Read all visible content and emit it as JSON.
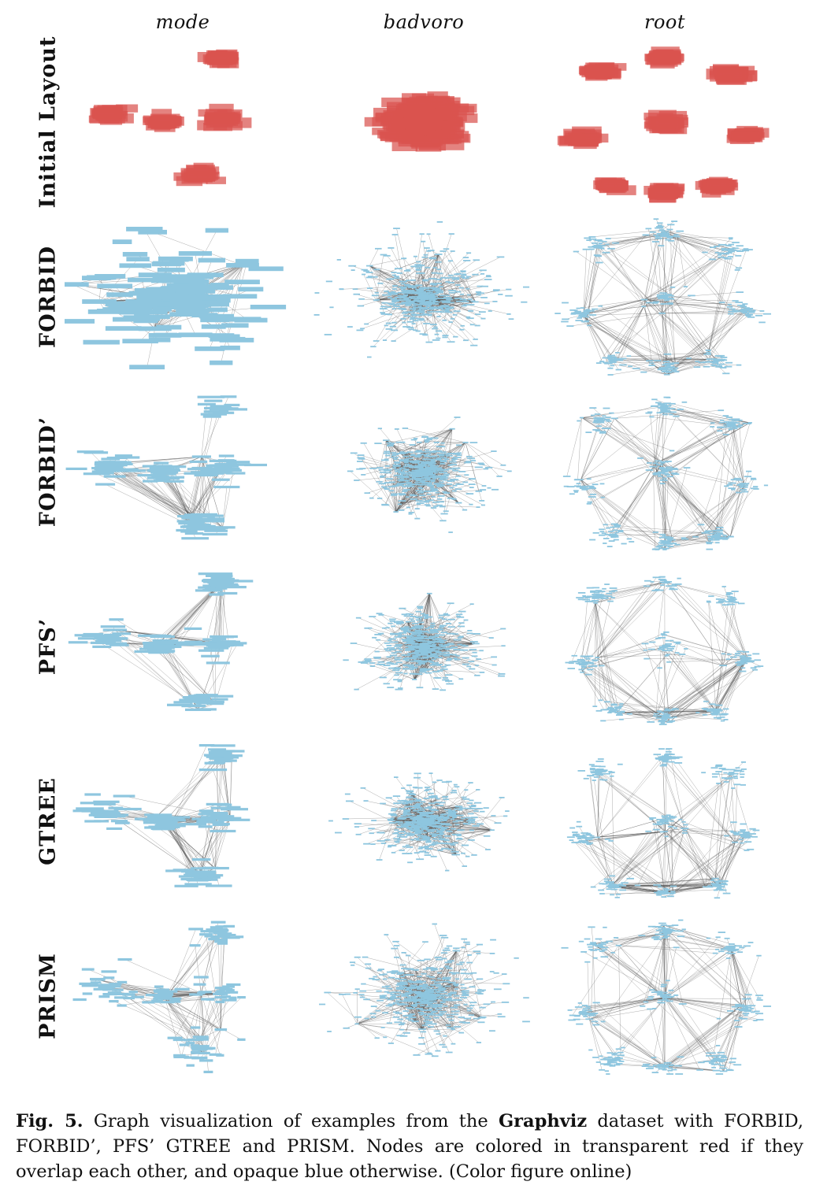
{
  "columns": [
    "mode",
    "badvoro",
    "root"
  ],
  "rows": [
    "Initial Layout",
    "FORBID",
    "FORBID’",
    "PFS’",
    "GTREE",
    "PRISM"
  ],
  "colors": {
    "overlap_node": "#d9534f",
    "overlap_node_fill": "rgba(217,83,79,0.72)",
    "node": "#8ec6df",
    "edge": "#555555"
  },
  "caption": {
    "fig_label": "Fig. 5.",
    "text_1": " Graph visualization of examples from the ",
    "dataset": "Graphviz",
    "text_2": " dataset with FORBID, FORBID’, PFS’ GTREE and PRISM. Nodes are colored in transparent red if they overlap each other, and opaque blue otherwise. (Color figure online)"
  }
}
